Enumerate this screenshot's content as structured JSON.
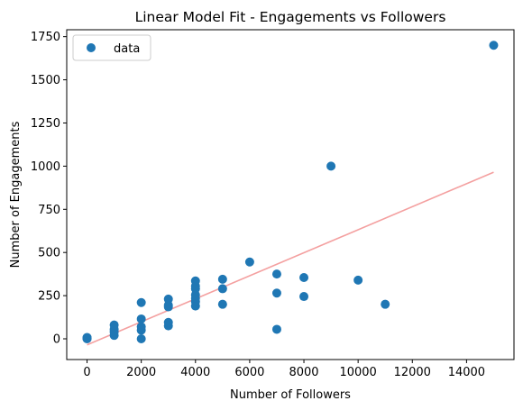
{
  "chart_data": {
    "type": "scatter",
    "title": "Linear Model Fit - Engagements vs Followers",
    "xlabel": "Number of Followers",
    "ylabel": "Number of Engagements",
    "xlim": [
      -750,
      15750
    ],
    "ylim": [
      -120,
      1790
    ],
    "xticks": [
      0,
      2000,
      4000,
      6000,
      8000,
      10000,
      12000,
      14000
    ],
    "yticks": [
      0,
      250,
      500,
      750,
      1000,
      1250,
      1500,
      1750
    ],
    "grid": false,
    "legend_position": "top-left",
    "colors": {
      "points": "#1f77b4",
      "fit_line": "#f4a0a0"
    },
    "series": [
      {
        "name": "data",
        "kind": "scatter",
        "points": [
          [
            0,
            0
          ],
          [
            0,
            2
          ],
          [
            0,
            4
          ],
          [
            0,
            6
          ],
          [
            0,
            8
          ],
          [
            1000,
            20
          ],
          [
            1000,
            40
          ],
          [
            1000,
            55
          ],
          [
            1000,
            80
          ],
          [
            2000,
            0
          ],
          [
            2000,
            50
          ],
          [
            2000,
            70
          ],
          [
            2000,
            115
          ],
          [
            2000,
            210
          ],
          [
            3000,
            75
          ],
          [
            3000,
            95
          ],
          [
            3000,
            185
          ],
          [
            3000,
            195
          ],
          [
            3000,
            230
          ],
          [
            4000,
            190
          ],
          [
            4000,
            215
          ],
          [
            4000,
            235
          ],
          [
            4000,
            255
          ],
          [
            4000,
            290
          ],
          [
            4000,
            305
          ],
          [
            4000,
            335
          ],
          [
            5000,
            200
          ],
          [
            5000,
            290
          ],
          [
            5000,
            345
          ],
          [
            6000,
            445
          ],
          [
            7000,
            55
          ],
          [
            7000,
            265
          ],
          [
            7000,
            375
          ],
          [
            8000,
            245
          ],
          [
            8000,
            355
          ],
          [
            9000,
            1000
          ],
          [
            10000,
            340
          ],
          [
            11000,
            200
          ],
          [
            15000,
            1700
          ]
        ]
      },
      {
        "kind": "line",
        "points": [
          [
            0,
            -35
          ],
          [
            15000,
            965
          ]
        ]
      }
    ]
  }
}
